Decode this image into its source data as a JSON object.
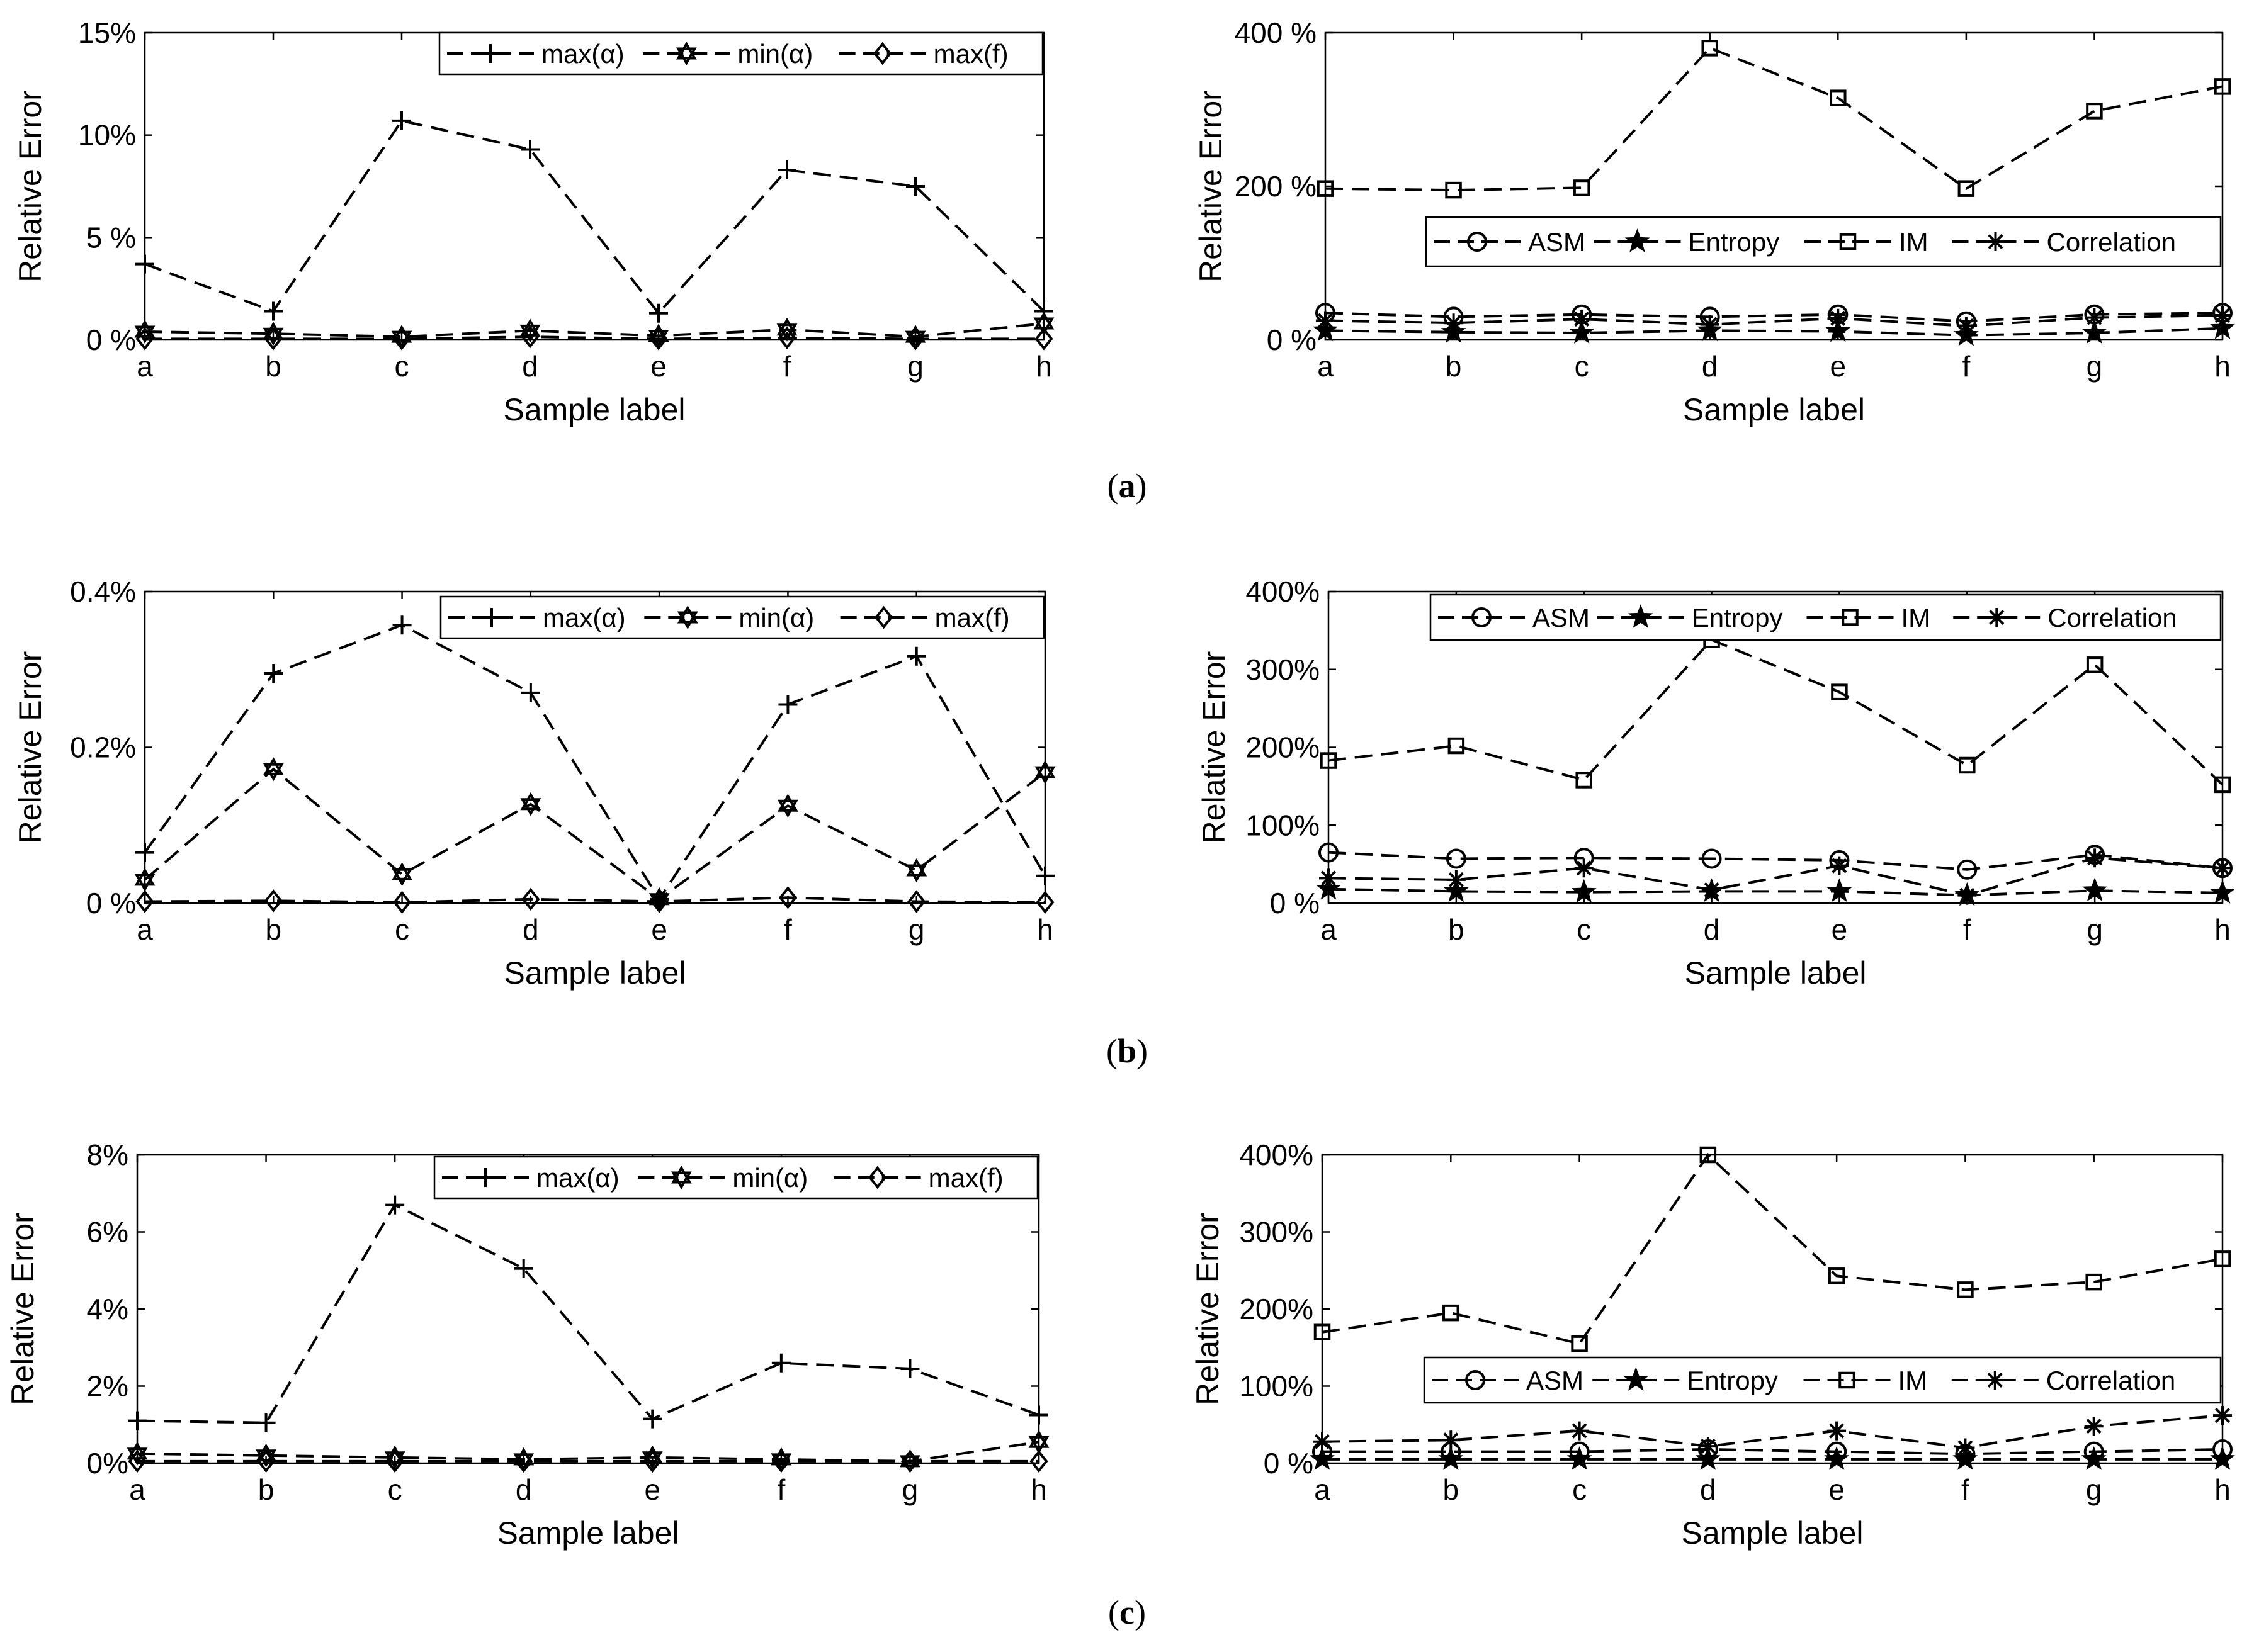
{
  "figure": {
    "captions": [
      {
        "open": "(",
        "letter": "a",
        "close": ")"
      },
      {
        "open": "(",
        "letter": "b",
        "close": ")"
      },
      {
        "open": "(",
        "letter": "c",
        "close": ")"
      }
    ]
  },
  "chart_data": [
    {
      "id": "a-left",
      "type": "line",
      "xlabel": "Sample label",
      "ylabel": "Relative Error",
      "categories": [
        "a",
        "b",
        "c",
        "d",
        "e",
        "f",
        "g",
        "h"
      ],
      "ylim": [
        0,
        15
      ],
      "yticks": [
        {
          "v": 0,
          "label": "0 %"
        },
        {
          "v": 5,
          "label": "5 %"
        },
        {
          "v": 10,
          "label": "10%"
        },
        {
          "v": 15,
          "label": "15%"
        }
      ],
      "legend_position": "top-right",
      "series": [
        {
          "name": "max(α)",
          "marker": "plus",
          "values": [
            3.7,
            1.4,
            10.7,
            9.3,
            1.3,
            8.3,
            7.5,
            1.4
          ]
        },
        {
          "name": "min(α)",
          "marker": "hexagram",
          "values": [
            0.4,
            0.3,
            0.15,
            0.45,
            0.2,
            0.5,
            0.15,
            0.8
          ]
        },
        {
          "name": "max(f)",
          "marker": "diamond",
          "values": [
            0.05,
            0.05,
            0.05,
            0.15,
            0.05,
            0.1,
            0.05,
            0.05
          ]
        }
      ]
    },
    {
      "id": "a-right",
      "type": "line",
      "xlabel": "Sample label",
      "ylabel": "Relative Error",
      "categories": [
        "a",
        "b",
        "c",
        "d",
        "e",
        "f",
        "g",
        "h"
      ],
      "ylim": [
        0,
        400
      ],
      "yticks": [
        {
          "v": 0,
          "label": "0 %"
        },
        {
          "v": 200,
          "label": "200 %"
        },
        {
          "v": 400,
          "label": "400 %"
        }
      ],
      "legend_position": "center-right",
      "series": [
        {
          "name": "ASM",
          "marker": "circle",
          "values": [
            35,
            30,
            33,
            30,
            33,
            24,
            33,
            35
          ]
        },
        {
          "name": "Entropy",
          "marker": "star",
          "values": [
            12,
            10,
            9,
            12,
            11,
            6,
            9,
            15
          ]
        },
        {
          "name": "IM",
          "marker": "square",
          "values": [
            197,
            195,
            198,
            380,
            315,
            197,
            298,
            330
          ]
        },
        {
          "name": "Correlation",
          "marker": "asterisk",
          "values": [
            25,
            22,
            27,
            20,
            28,
            18,
            29,
            32
          ]
        }
      ]
    },
    {
      "id": "b-left",
      "type": "line",
      "xlabel": "Sample label",
      "ylabel": "Relative Error",
      "categories": [
        "a",
        "b",
        "c",
        "d",
        "e",
        "f",
        "g",
        "h"
      ],
      "ylim": [
        0,
        0.4
      ],
      "yticks": [
        {
          "v": 0,
          "label": "0 %"
        },
        {
          "v": 0.2,
          "label": "0.2%"
        },
        {
          "v": 0.4,
          "label": "0.4%"
        }
      ],
      "legend_position": "top-right",
      "series": [
        {
          "name": "max(α)",
          "marker": "plus",
          "values": [
            0.065,
            0.295,
            0.357,
            0.27,
            0.005,
            0.255,
            0.317,
            0.035
          ]
        },
        {
          "name": "min(α)",
          "marker": "hexagram",
          "values": [
            0.03,
            0.172,
            0.037,
            0.127,
            0.005,
            0.125,
            0.042,
            0.168
          ]
        },
        {
          "name": "max(f)",
          "marker": "diamond",
          "values": [
            0.002,
            0.003,
            0.001,
            0.005,
            0.002,
            0.007,
            0.002,
            0.001
          ]
        }
      ]
    },
    {
      "id": "b-right",
      "type": "line",
      "xlabel": "Sample label",
      "ylabel": "Relative Error",
      "categories": [
        "a",
        "b",
        "c",
        "d",
        "e",
        "f",
        "g",
        "h"
      ],
      "ylim": [
        0,
        400
      ],
      "yticks": [
        {
          "v": 0,
          "label": "0 %"
        },
        {
          "v": 100,
          "label": "100%"
        },
        {
          "v": 200,
          "label": "200%"
        },
        {
          "v": 300,
          "label": "300%"
        },
        {
          "v": 400,
          "label": "400%"
        }
      ],
      "legend_position": "top-right",
      "series": [
        {
          "name": "ASM",
          "marker": "circle",
          "values": [
            65,
            57,
            58,
            57,
            55,
            43,
            62,
            45
          ]
        },
        {
          "name": "Entropy",
          "marker": "star",
          "values": [
            18,
            15,
            14,
            15,
            15,
            10,
            16,
            13
          ]
        },
        {
          "name": "IM",
          "marker": "square",
          "values": [
            183,
            202,
            158,
            338,
            271,
            177,
            306,
            152
          ]
        },
        {
          "name": "Correlation",
          "marker": "asterisk",
          "values": [
            32,
            30,
            45,
            17,
            48,
            10,
            58,
            45
          ]
        }
      ]
    },
    {
      "id": "c-left",
      "type": "line",
      "xlabel": "Sample label",
      "ylabel": "Relative Error",
      "categories": [
        "a",
        "b",
        "c",
        "d",
        "e",
        "f",
        "g",
        "h"
      ],
      "ylim": [
        0,
        8
      ],
      "yticks": [
        {
          "v": 0,
          "label": "0%"
        },
        {
          "v": 2,
          "label": "2%"
        },
        {
          "v": 4,
          "label": "4%"
        },
        {
          "v": 6,
          "label": "6%"
        },
        {
          "v": 8,
          "label": "8%"
        }
      ],
      "legend_position": "top-right",
      "series": [
        {
          "name": "max(α)",
          "marker": "plus",
          "values": [
            1.1,
            1.05,
            6.7,
            5.05,
            1.15,
            2.6,
            2.45,
            1.25
          ]
        },
        {
          "name": "min(α)",
          "marker": "hexagram",
          "values": [
            0.25,
            0.2,
            0.15,
            0.1,
            0.15,
            0.1,
            0.05,
            0.55
          ]
        },
        {
          "name": "max(f)",
          "marker": "diamond",
          "values": [
            0.05,
            0.05,
            0.05,
            0.05,
            0.05,
            0.05,
            0.05,
            0.05
          ]
        }
      ]
    },
    {
      "id": "c-right",
      "type": "line",
      "xlabel": "Sample label",
      "ylabel": "Relative Error",
      "categories": [
        "a",
        "b",
        "c",
        "d",
        "e",
        "f",
        "g",
        "h"
      ],
      "ylim": [
        0,
        400
      ],
      "yticks": [
        {
          "v": 0,
          "label": "0 %"
        },
        {
          "v": 100,
          "label": "100%"
        },
        {
          "v": 200,
          "label": "200%"
        },
        {
          "v": 300,
          "label": "300%"
        },
        {
          "v": 400,
          "label": "400%"
        }
      ],
      "legend_position": "center-right",
      "series": [
        {
          "name": "ASM",
          "marker": "circle",
          "values": [
            15,
            15,
            15,
            18,
            15,
            12,
            15,
            18
          ]
        },
        {
          "name": "Entropy",
          "marker": "star",
          "values": [
            5,
            5,
            5,
            5,
            5,
            5,
            5,
            5
          ]
        },
        {
          "name": "IM",
          "marker": "square",
          "values": [
            170,
            195,
            155,
            400,
            243,
            225,
            235,
            265
          ]
        },
        {
          "name": "Correlation",
          "marker": "asterisk",
          "values": [
            28,
            30,
            42,
            22,
            42,
            20,
            48,
            62
          ]
        }
      ]
    }
  ]
}
